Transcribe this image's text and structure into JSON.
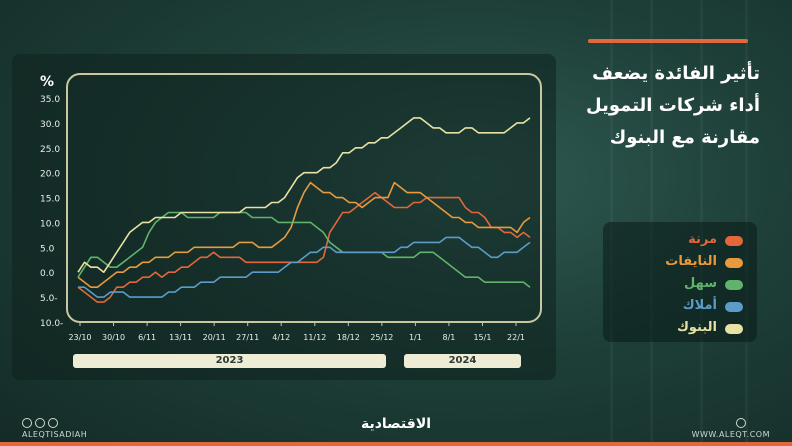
{
  "title_lines": [
    "تأثير الفائدة يضعف",
    "أداء شركات التمويل",
    "مقارنة مع البنوك"
  ],
  "footer": {
    "logo": "الاقتصادية",
    "handle": "ALEQTISADIAH",
    "site": "WWW.ALEQT.COM"
  },
  "colors": {
    "accent": "#e3673a",
    "frame": "#c9c7a2",
    "year_box": "#efecd6"
  },
  "chart_data": {
    "type": "line",
    "ylabel": "%",
    "ylim": [
      -10,
      35
    ],
    "yticks": [
      "35.0",
      "30.0",
      "25.0",
      "20.0",
      "15.0",
      "10.0",
      "5.0",
      "0.0",
      "5.0-",
      "10.0-"
    ],
    "ytick_values": [
      35,
      30,
      25,
      20,
      15,
      10,
      5,
      0,
      -5,
      -10
    ],
    "xticks": [
      "23/10",
      "30/10",
      "6/11",
      "13/11",
      "20/11",
      "27/11",
      "4/12",
      "11/12",
      "18/12",
      "25/12",
      "1/1",
      "8/1",
      "15/1",
      "22/1"
    ],
    "year_labels": [
      "2023",
      "2024"
    ],
    "x": [
      0,
      1,
      2,
      3,
      4,
      5,
      6,
      7,
      8,
      9,
      10,
      11,
      12,
      13,
      14,
      15,
      16,
      17,
      18,
      19,
      20,
      21,
      22,
      23,
      24,
      25,
      26,
      27,
      28,
      29,
      30,
      31,
      32,
      33,
      34,
      35,
      36,
      37,
      38,
      39,
      40,
      41,
      42,
      43,
      44,
      45,
      46,
      47,
      48,
      49,
      50,
      51,
      52,
      53,
      54,
      55,
      56,
      57,
      58,
      59,
      60,
      61,
      62,
      63,
      64,
      65,
      66,
      67,
      68,
      69,
      70
    ],
    "series": [
      {
        "name": "مرنة",
        "color": "#e3673a",
        "values": [
          -3,
          -4,
          -5,
          -6,
          -6,
          -5,
          -3,
          -3,
          -2,
          -2,
          -1,
          -1,
          0,
          -1,
          0,
          0,
          1,
          1,
          2,
          3,
          3,
          4,
          3,
          3,
          3,
          3,
          2,
          2,
          2,
          2,
          2,
          2,
          2,
          2,
          2,
          2,
          2,
          2,
          3,
          8,
          10,
          12,
          12,
          13,
          14,
          15,
          16,
          15,
          14,
          13,
          13,
          13,
          14,
          14,
          15,
          15,
          15,
          15,
          15,
          15,
          13,
          12,
          12,
          11,
          9,
          9,
          8,
          8,
          7,
          8,
          7
        ]
      },
      {
        "name": "النايفات",
        "color": "#e89a3c",
        "values": [
          -1,
          -2,
          -3,
          -3,
          -2,
          -1,
          0,
          0,
          1,
          1,
          2,
          2,
          3,
          3,
          3,
          4,
          4,
          4,
          5,
          5,
          5,
          5,
          5,
          5,
          5,
          6,
          6,
          6,
          5,
          5,
          5,
          6,
          7,
          9,
          13,
          16,
          18,
          17,
          16,
          16,
          15,
          15,
          14,
          14,
          13,
          14,
          15,
          15,
          15,
          18,
          17,
          16,
          16,
          16,
          15,
          14,
          13,
          12,
          11,
          11,
          10,
          10,
          9,
          9,
          9,
          9,
          9,
          9,
          8,
          10,
          11
        ]
      },
      {
        "name": "سهل",
        "color": "#5fb36a",
        "values": [
          -1,
          1,
          3,
          3,
          2,
          1,
          1,
          2,
          3,
          4,
          5,
          8,
          10,
          11,
          12,
          12,
          12,
          11,
          11,
          11,
          11,
          11,
          12,
          12,
          12,
          12,
          12,
          11,
          11,
          11,
          11,
          10,
          10,
          10,
          10,
          10,
          10,
          9,
          8,
          6,
          5,
          4,
          4,
          4,
          4,
          4,
          4,
          4,
          3,
          3,
          3,
          3,
          3,
          4,
          4,
          4,
          3,
          2,
          1,
          0,
          -1,
          -1,
          -1,
          -2,
          -2,
          -2,
          -2,
          -2,
          -2,
          -2,
          -3
        ]
      },
      {
        "name": "أملاك",
        "color": "#5b9cc9",
        "values": [
          -3,
          -3,
          -4,
          -5,
          -5,
          -4,
          -4,
          -4,
          -5,
          -5,
          -5,
          -5,
          -5,
          -5,
          -4,
          -4,
          -3,
          -3,
          -3,
          -2,
          -2,
          -2,
          -1,
          -1,
          -1,
          -1,
          -1,
          0,
          0,
          0,
          0,
          0,
          1,
          2,
          2,
          3,
          4,
          4,
          5,
          5,
          4,
          4,
          4,
          4,
          4,
          4,
          4,
          4,
          4,
          4,
          5,
          5,
          6,
          6,
          6,
          6,
          6,
          7,
          7,
          7,
          6,
          5,
          5,
          4,
          3,
          3,
          4,
          4,
          4,
          5,
          6
        ]
      },
      {
        "name": "البنوك",
        "color": "#e8e2a4",
        "values": [
          0,
          2,
          1,
          1,
          0,
          2,
          4,
          6,
          8,
          9,
          10,
          10,
          11,
          11,
          11,
          11,
          12,
          12,
          12,
          12,
          12,
          12,
          12,
          12,
          12,
          12,
          13,
          13,
          13,
          13,
          14,
          14,
          15,
          17,
          19,
          20,
          20,
          20,
          21,
          21,
          22,
          24,
          24,
          25,
          25,
          26,
          26,
          27,
          27,
          28,
          29,
          30,
          31,
          31,
          30,
          29,
          29,
          28,
          28,
          28,
          29,
          29,
          28,
          28,
          28,
          28,
          28,
          29,
          30,
          30,
          31
        ]
      }
    ]
  }
}
